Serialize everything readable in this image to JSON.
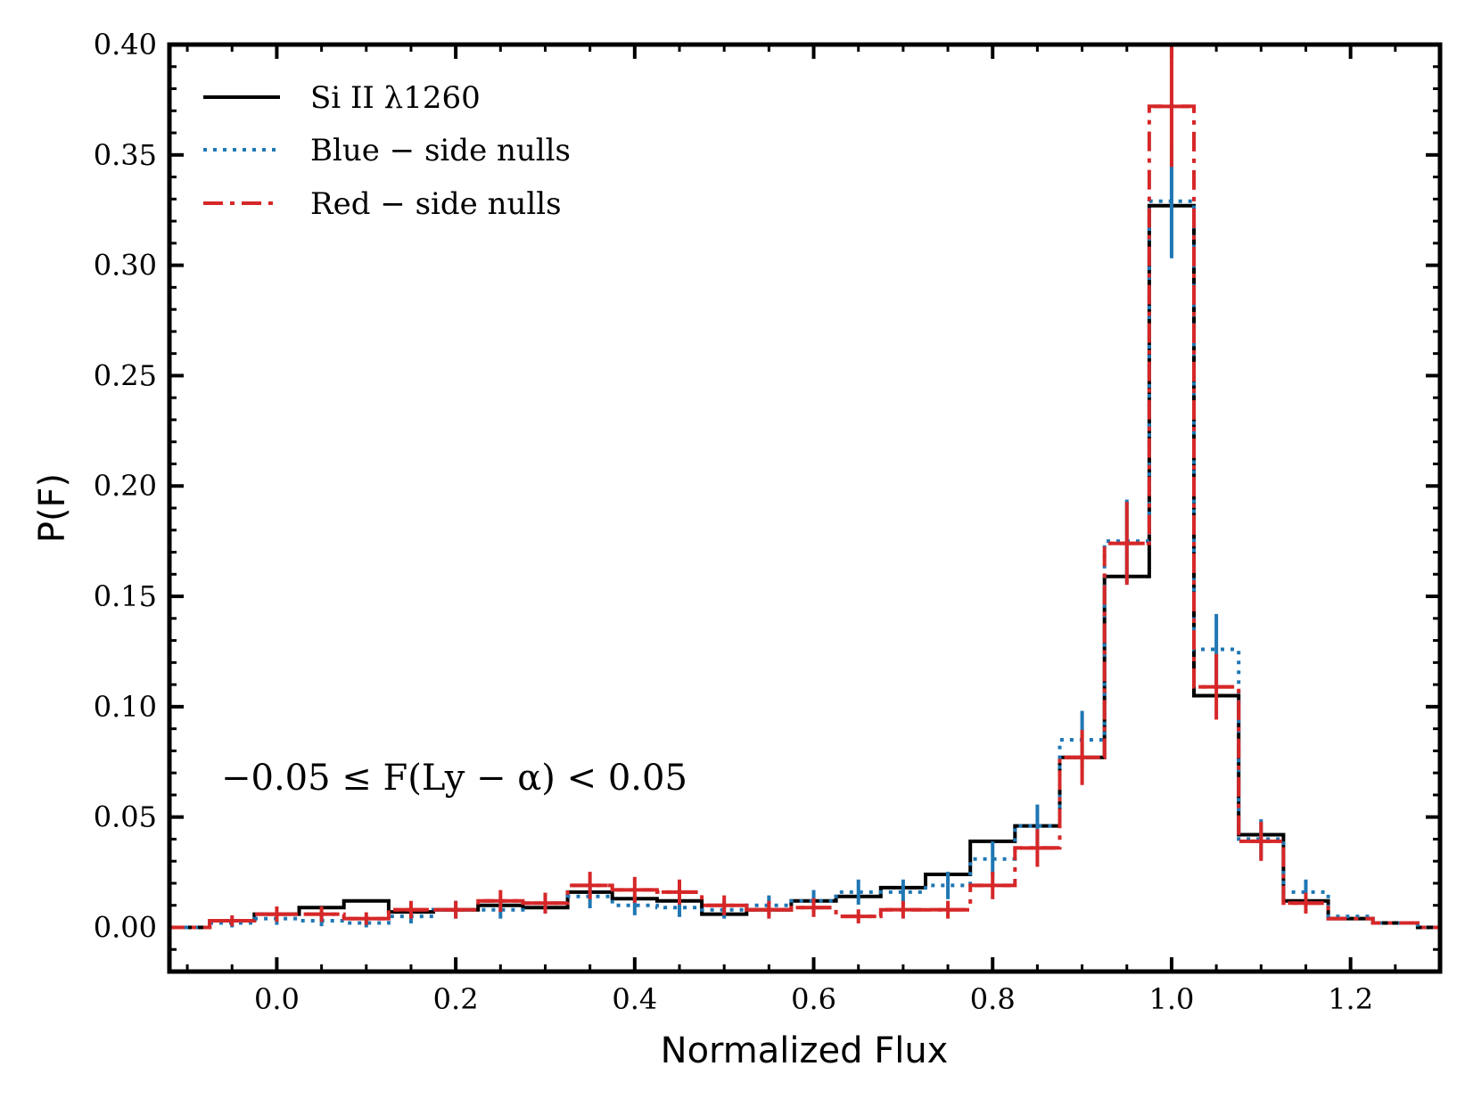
{
  "chart_data": {
    "type": "line",
    "subtype": "step-histogram",
    "xlabel": "Normalized Flux",
    "ylabel": "P(F)",
    "xlim": [
      -0.12,
      1.3
    ],
    "ylim": [
      -0.02,
      0.4
    ],
    "x_ticks": [
      0.0,
      0.2,
      0.4,
      0.6,
      0.8,
      1.0,
      1.2
    ],
    "x_tick_labels": [
      "0.0",
      "0.2",
      "0.4",
      "0.6",
      "0.8",
      "1.0",
      "1.2"
    ],
    "y_ticks": [
      0.0,
      0.05,
      0.1,
      0.15,
      0.2,
      0.25,
      0.3,
      0.35,
      0.4
    ],
    "y_tick_labels": [
      "0.00",
      "0.05",
      "0.10",
      "0.15",
      "0.20",
      "0.25",
      "0.30",
      "0.35",
      "0.40"
    ],
    "grid": false,
    "legend_position": "top-left",
    "annotation": "−0.05 ≤ F(Ly − α) < 0.05",
    "bin_edges": [
      -0.125,
      -0.075,
      -0.025,
      0.025,
      0.075,
      0.125,
      0.175,
      0.225,
      0.275,
      0.325,
      0.375,
      0.425,
      0.475,
      0.525,
      0.575,
      0.625,
      0.675,
      0.725,
      0.775,
      0.825,
      0.875,
      0.925,
      0.975,
      1.025,
      1.075,
      1.125,
      1.175,
      1.225,
      1.275,
      1.325
    ],
    "bin_centers": [
      -0.1,
      -0.05,
      0.0,
      0.05,
      0.1,
      0.15,
      0.2,
      0.25,
      0.3,
      0.35,
      0.4,
      0.45,
      0.5,
      0.55,
      0.6,
      0.65,
      0.7,
      0.75,
      0.8,
      0.85,
      0.9,
      0.95,
      1.0,
      1.05,
      1.1,
      1.15,
      1.2,
      1.25,
      1.3
    ],
    "series": [
      {
        "name": "Si II λ1260",
        "color": "#000000",
        "linestyle": "solid",
        "values": [
          0.0,
          0.003,
          0.006,
          0.009,
          0.012,
          0.007,
          0.008,
          0.01,
          0.009,
          0.016,
          0.013,
          0.012,
          0.006,
          0.008,
          0.012,
          0.014,
          0.018,
          0.024,
          0.039,
          0.046,
          0.077,
          0.159,
          0.327,
          0.105,
          0.042,
          0.012,
          0.004,
          0.002,
          0.0
        ]
      },
      {
        "name": "Blue − side nulls",
        "color": "#1f77b4",
        "linestyle": "dotted",
        "values": [
          0.0,
          0.002,
          0.004,
          0.003,
          0.002,
          0.005,
          0.008,
          0.008,
          0.011,
          0.014,
          0.01,
          0.009,
          0.008,
          0.01,
          0.012,
          0.016,
          0.016,
          0.019,
          0.031,
          0.046,
          0.085,
          0.175,
          0.329,
          0.126,
          0.04,
          0.016,
          0.005,
          0.002,
          0.0
        ]
      },
      {
        "name": "Red − side nulls",
        "color": "#d62728",
        "linestyle": "dashdot",
        "values": [
          0.0,
          0.003,
          0.006,
          0.006,
          0.004,
          0.008,
          0.008,
          0.012,
          0.011,
          0.019,
          0.017,
          0.016,
          0.01,
          0.008,
          0.009,
          0.005,
          0.008,
          0.008,
          0.019,
          0.036,
          0.077,
          0.174,
          0.372,
          0.109,
          0.039,
          0.011,
          0.004,
          0.002,
          0.0
        ]
      }
    ]
  }
}
